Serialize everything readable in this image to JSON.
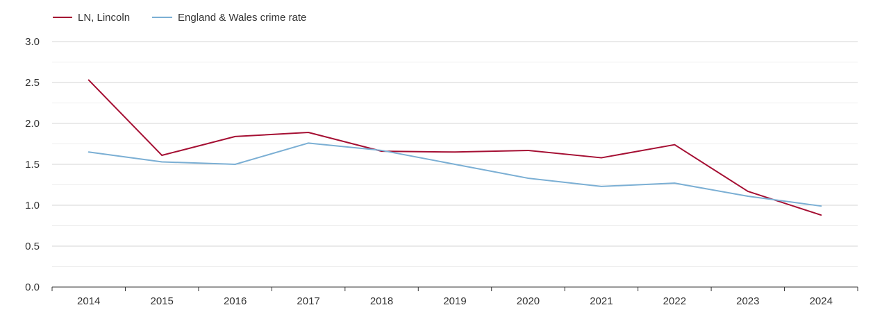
{
  "chart_data": {
    "type": "line",
    "title": "",
    "xlabel": "",
    "ylabel": "",
    "categories": [
      "2014",
      "2015",
      "2016",
      "2017",
      "2018",
      "2019",
      "2020",
      "2021",
      "2022",
      "2023",
      "2024"
    ],
    "ylim": [
      0,
      3.0
    ],
    "y_ticks": [
      "0.0",
      "0.5",
      "1.0",
      "1.5",
      "2.0",
      "2.5",
      "3.0"
    ],
    "y_tick_values": [
      0,
      0.5,
      1.0,
      1.5,
      2.0,
      2.5,
      3.0
    ],
    "grid": true,
    "legend_position": "top-left",
    "series": [
      {
        "name": "LN, Lincoln",
        "color": "#a50f33",
        "values": [
          2.53,
          1.61,
          1.84,
          1.89,
          1.66,
          1.65,
          1.67,
          1.58,
          1.74,
          1.17,
          0.88
        ]
      },
      {
        "name": "England & Wales crime rate",
        "color": "#7bafd4",
        "values": [
          1.65,
          1.53,
          1.5,
          1.76,
          1.67,
          1.5,
          1.33,
          1.23,
          1.27,
          1.11,
          0.99
        ]
      }
    ]
  }
}
